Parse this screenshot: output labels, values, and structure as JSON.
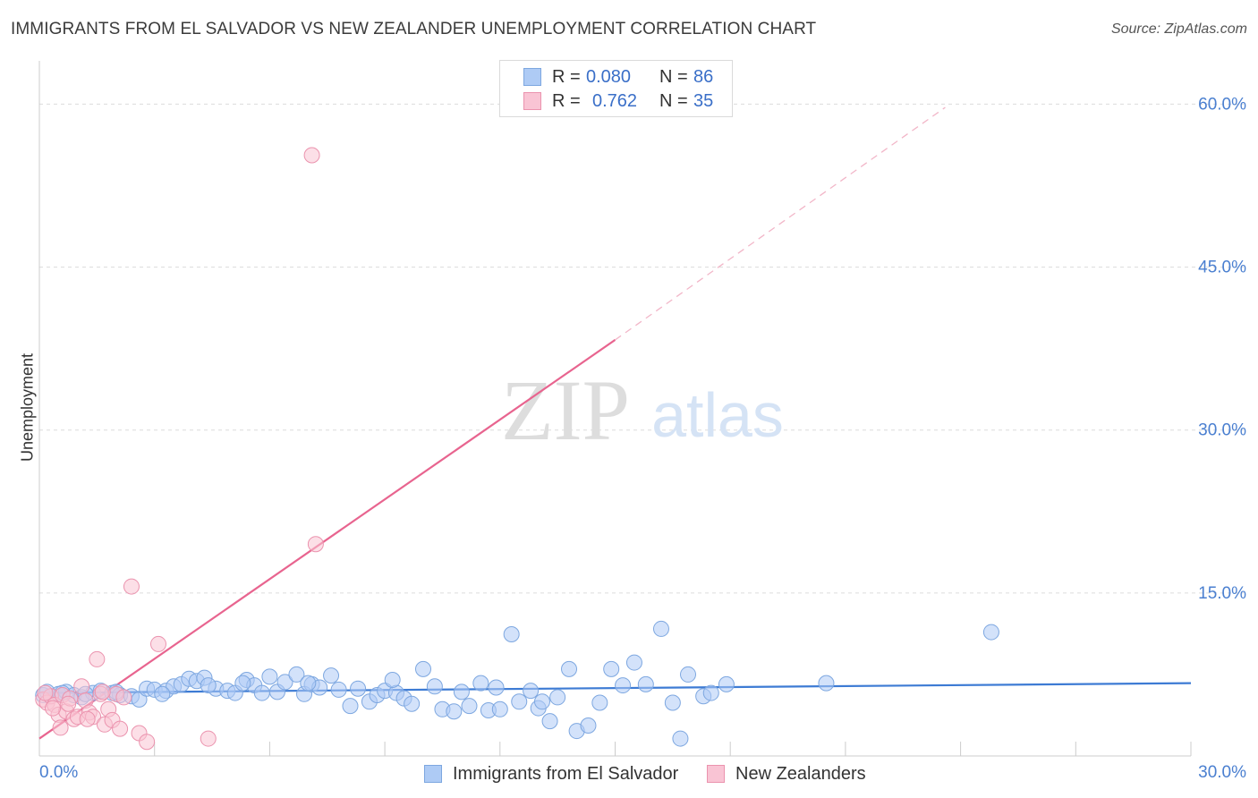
{
  "title": "IMMIGRANTS FROM EL SALVADOR VS NEW ZEALANDER UNEMPLOYMENT CORRELATION CHART",
  "source": "Source: ZipAtlas.com",
  "watermark": {
    "zip": "ZIP",
    "atlas": "atlas"
  },
  "legend": {
    "rows": [
      {
        "r_label": "R =",
        "r_value": "0.080",
        "n_label": "N =",
        "n_value": "86",
        "color": "#aecbf5",
        "border": "#7da7e0"
      },
      {
        "r_label": "R =",
        "r_value": "0.762",
        "n_label": "N =",
        "n_value": "35",
        "color": "#f9c4d4",
        "border": "#eb93ae"
      }
    ]
  },
  "bottom_legend": {
    "series1": "Immigrants from El Salvador",
    "series2": "New Zealanders"
  },
  "chart_data": {
    "type": "scatter",
    "ylabel": "Unemployment",
    "xlabel": "",
    "xlim": [
      0,
      30
    ],
    "ylim": [
      0,
      63
    ],
    "x_tick_labels": [
      "0.0%",
      "30.0%"
    ],
    "y_ticks": [
      15,
      30,
      45,
      60
    ],
    "y_tick_labels": [
      "15.0%",
      "30.0%",
      "45.0%",
      "60.0%"
    ],
    "grid": true,
    "colors": {
      "blue": "#3d7bd4",
      "blue_fill": "#aecbf5",
      "pink": "#e8648f",
      "pink_fill": "#f9c4d4",
      "tick_text": "#4a7fd0"
    },
    "series": [
      {
        "name": "Immigrants from El Salvador",
        "trend": {
          "x": [
            0,
            30
          ],
          "y": [
            5.8,
            6.7
          ]
        },
        "points": [
          [
            0.1,
            5.6
          ],
          [
            0.3,
            5.5
          ],
          [
            0.5,
            5.7
          ],
          [
            0.7,
            5.9
          ],
          [
            0.9,
            5.6
          ],
          [
            1.1,
            5.4
          ],
          [
            1.4,
            5.8
          ],
          [
            1.6,
            6.0
          ],
          [
            1.9,
            5.8
          ],
          [
            2.1,
            5.6
          ],
          [
            2.4,
            5.5
          ],
          [
            2.6,
            5.2
          ],
          [
            2.8,
            6.2
          ],
          [
            3.0,
            6.1
          ],
          [
            3.3,
            6.0
          ],
          [
            3.5,
            6.4
          ],
          [
            3.7,
            6.6
          ],
          [
            3.9,
            7.1
          ],
          [
            4.1,
            6.9
          ],
          [
            4.3,
            7.2
          ],
          [
            4.6,
            6.2
          ],
          [
            4.9,
            6.0
          ],
          [
            5.1,
            5.8
          ],
          [
            5.4,
            7.0
          ],
          [
            5.6,
            6.5
          ],
          [
            5.8,
            5.8
          ],
          [
            6.0,
            7.3
          ],
          [
            6.2,
            5.9
          ],
          [
            6.4,
            6.8
          ],
          [
            6.7,
            7.5
          ],
          [
            6.9,
            5.7
          ],
          [
            7.1,
            6.6
          ],
          [
            7.3,
            6.3
          ],
          [
            7.6,
            7.4
          ],
          [
            7.8,
            6.1
          ],
          [
            8.1,
            4.6
          ],
          [
            8.3,
            6.2
          ],
          [
            8.6,
            5.0
          ],
          [
            8.8,
            5.6
          ],
          [
            9.0,
            6.0
          ],
          [
            9.3,
            5.8
          ],
          [
            9.5,
            5.3
          ],
          [
            9.7,
            4.8
          ],
          [
            10.0,
            8.0
          ],
          [
            10.3,
            6.4
          ],
          [
            10.5,
            4.3
          ],
          [
            10.8,
            4.1
          ],
          [
            11.0,
            5.9
          ],
          [
            11.2,
            4.6
          ],
          [
            11.5,
            6.7
          ],
          [
            11.7,
            4.2
          ],
          [
            12.0,
            4.3
          ],
          [
            12.3,
            11.2
          ],
          [
            12.5,
            5.0
          ],
          [
            12.8,
            6.0
          ],
          [
            13.0,
            4.4
          ],
          [
            13.3,
            3.2
          ],
          [
            13.5,
            5.4
          ],
          [
            13.8,
            8.0
          ],
          [
            14.0,
            2.3
          ],
          [
            14.3,
            2.8
          ],
          [
            14.6,
            4.9
          ],
          [
            14.9,
            8.0
          ],
          [
            15.2,
            6.5
          ],
          [
            15.5,
            8.6
          ],
          [
            15.8,
            6.6
          ],
          [
            16.2,
            11.7
          ],
          [
            16.5,
            4.9
          ],
          [
            16.7,
            1.6
          ],
          [
            16.9,
            7.5
          ],
          [
            17.3,
            5.5
          ],
          [
            17.5,
            5.8
          ],
          [
            17.9,
            6.6
          ],
          [
            20.5,
            6.7
          ],
          [
            24.8,
            11.4
          ],
          [
            2.0,
            5.9
          ],
          [
            1.2,
            5.7
          ],
          [
            0.6,
            5.8
          ],
          [
            0.2,
            5.9
          ],
          [
            3.2,
            5.7
          ],
          [
            4.4,
            6.5
          ],
          [
            5.3,
            6.7
          ],
          [
            9.2,
            7.0
          ],
          [
            11.9,
            6.3
          ],
          [
            13.1,
            5.0
          ],
          [
            7.0,
            6.7
          ]
        ]
      },
      {
        "name": "New Zealanders",
        "trend": {
          "x": [
            0,
            15.0
          ],
          "y": [
            1.6,
            38.3
          ]
        },
        "trend_extension": {
          "x": [
            15.0,
            23.6
          ],
          "y": [
            38.3,
            59.7
          ]
        },
        "points": [
          [
            0.1,
            5.2
          ],
          [
            0.2,
            4.9
          ],
          [
            0.3,
            5.5
          ],
          [
            0.4,
            4.7
          ],
          [
            0.5,
            3.8
          ],
          [
            0.6,
            5.6
          ],
          [
            0.7,
            4.1
          ],
          [
            0.8,
            5.3
          ],
          [
            0.9,
            3.4
          ],
          [
            1.0,
            3.6
          ],
          [
            1.1,
            6.4
          ],
          [
            1.2,
            5.1
          ],
          [
            1.3,
            4.0
          ],
          [
            1.4,
            3.6
          ],
          [
            1.5,
            8.9
          ],
          [
            1.6,
            5.7
          ],
          [
            1.7,
            2.9
          ],
          [
            1.8,
            4.3
          ],
          [
            1.9,
            3.3
          ],
          [
            2.0,
            5.7
          ],
          [
            2.1,
            2.5
          ],
          [
            2.2,
            5.4
          ],
          [
            2.4,
            15.6
          ],
          [
            2.6,
            2.1
          ],
          [
            2.8,
            1.3
          ],
          [
            3.1,
            10.3
          ],
          [
            4.4,
            1.6
          ],
          [
            7.1,
            55.3
          ],
          [
            7.2,
            19.5
          ],
          [
            0.15,
            5.8
          ],
          [
            0.35,
            4.4
          ],
          [
            0.55,
            2.6
          ],
          [
            0.75,
            4.8
          ],
          [
            1.25,
            3.4
          ],
          [
            1.65,
            5.9
          ]
        ]
      }
    ]
  }
}
